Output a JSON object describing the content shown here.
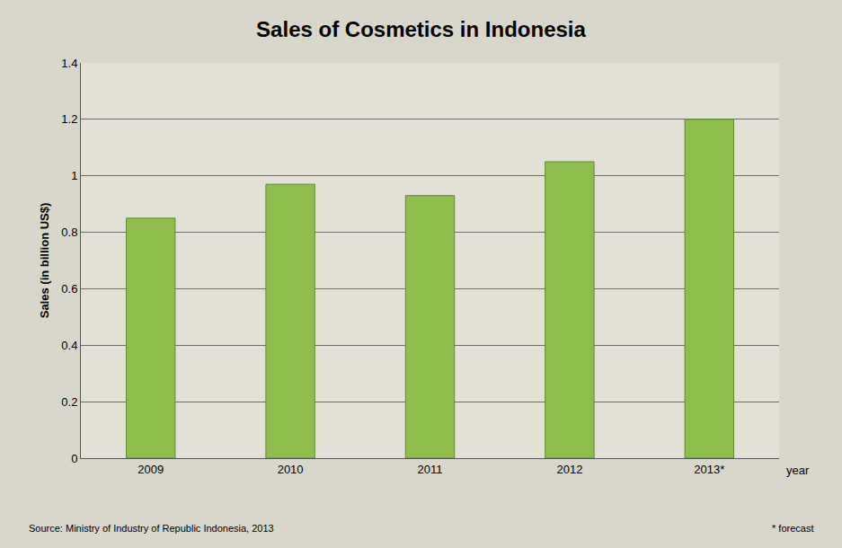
{
  "chart_data": {
    "type": "bar",
    "title": "Sales of Cosmetics in Indonesia",
    "x_label": "year",
    "y_label": "Sales (in billion US$)",
    "categories": [
      "2009",
      "2010",
      "2011",
      "2012",
      "2013*"
    ],
    "values": [
      0.85,
      0.97,
      0.93,
      1.05,
      1.2
    ],
    "color": "#8fbe4f",
    "ylim": [
      0,
      1.4
    ],
    "yticks": [
      0,
      0.2,
      0.4,
      0.6,
      0.8,
      1,
      1.2,
      1.4
    ],
    "grid": true,
    "annotations": [
      "Source: Ministry of Industry of Republic Indonesia, 2013",
      "* forecast"
    ]
  }
}
